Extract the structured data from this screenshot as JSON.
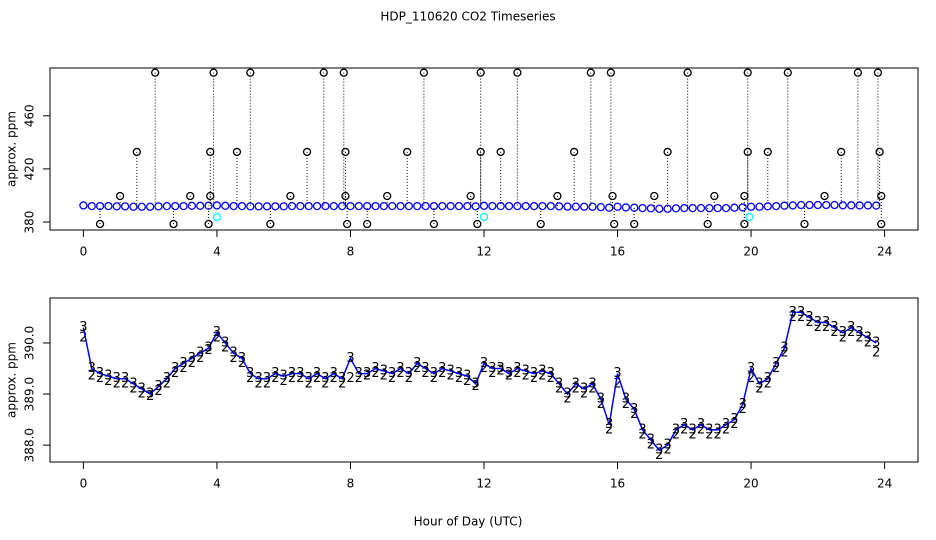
{
  "chart_data": [
    {
      "type": "scatter",
      "title": "HDP_110620  CO2 Timeseries",
      "ylabel": "approx. ppm",
      "xlim": [
        -1,
        25
      ],
      "xticks": [
        0,
        4,
        8,
        12,
        16,
        20,
        24
      ],
      "ylim": [
        374,
        496
      ],
      "yticks": [
        380,
        420,
        460
      ],
      "x": [
        0,
        0.25,
        0.5,
        0.75,
        1,
        1.25,
        1.5,
        1.75,
        2,
        2.25,
        2.5,
        2.75,
        3,
        3.25,
        3.5,
        3.75,
        4,
        4.25,
        4.5,
        4.75,
        5,
        5.25,
        5.5,
        5.75,
        6,
        6.25,
        6.5,
        6.75,
        7,
        7.25,
        7.5,
        7.75,
        8,
        8.25,
        8.5,
        8.75,
        9,
        9.25,
        9.5,
        9.75,
        10,
        10.25,
        10.5,
        10.75,
        11,
        11.25,
        11.5,
        11.75,
        12,
        12.25,
        12.5,
        12.75,
        13,
        13.25,
        13.5,
        13.75,
        14,
        14.25,
        14.5,
        14.75,
        15,
        15.25,
        15.5,
        15.75,
        16,
        16.25,
        16.5,
        16.75,
        17,
        17.25,
        17.5,
        17.75,
        18,
        18.25,
        18.5,
        18.75,
        19,
        19.25,
        19.5,
        19.75,
        20,
        20.25,
        20.5,
        20.75,
        21,
        21.25,
        21.5,
        21.75,
        22,
        22.25,
        22.5,
        22.75,
        23,
        23.25,
        23.5,
        23.75
      ],
      "series": [
        {
          "color": "#0000ff",
          "marker": "circle",
          "values": [
            392.5,
            392,
            392,
            392,
            391.8,
            391.8,
            391.5,
            391.5,
            391.5,
            391.8,
            392,
            392,
            392,
            392.2,
            392.2,
            392.3,
            392.5,
            392.2,
            392,
            392,
            391.8,
            391.8,
            391.8,
            391.8,
            391.8,
            392,
            392,
            392,
            392,
            392,
            392,
            392,
            392,
            392,
            392,
            392,
            392,
            392,
            392,
            392,
            392,
            392,
            392,
            392,
            392,
            392,
            392,
            391.8,
            392.2,
            392,
            392,
            392,
            392,
            392,
            392,
            392,
            392,
            391.8,
            391.6,
            391.6,
            391.5,
            391.5,
            391.2,
            390.8,
            391.5,
            391,
            390.8,
            390.5,
            390.3,
            390,
            390,
            390.3,
            390.5,
            390.5,
            390.5,
            390.5,
            390.5,
            390.5,
            390.8,
            391,
            391.5,
            391.5,
            391.8,
            392,
            392.3,
            392.5,
            392.8,
            392.8,
            392.8,
            392.8,
            392.8,
            392.6,
            392.6,
            392.5,
            392.5,
            392.4
          ]
        },
        {
          "color": "#000000",
          "marker": "circle",
          "drop": true,
          "x": [
            2.15,
            3.9,
            5.0,
            7.2,
            7.8,
            10.2,
            11.9,
            13.0,
            15.2,
            15.8,
            18.1,
            19.9,
            21.1,
            23.2,
            23.8,
            1.6,
            3.8,
            4.6,
            6.7,
            7.85,
            9.7,
            11.9,
            12.5,
            14.7,
            17.5,
            19.9,
            20.5,
            22.7,
            23.85,
            1.1,
            3.2,
            3.8,
            6.2,
            7.85,
            9.1,
            11.6,
            14.2,
            15.85,
            17.1,
            18.9,
            19.8,
            22.2,
            23.9,
            0.5,
            2.7,
            3.75,
            5.6,
            7.9,
            8.5,
            10.5,
            11.8,
            13.7,
            15.9,
            16.5,
            18.7,
            19.8,
            21.6,
            23.9
          ],
          "values": [
            492.5,
            492.5,
            492.5,
            492.5,
            492.5,
            492.5,
            492.5,
            492.5,
            492.5,
            492.5,
            492.5,
            492.5,
            492.5,
            492.5,
            492.5,
            432.8,
            432.8,
            432.8,
            432.8,
            432.8,
            432.8,
            432.8,
            432.8,
            432.8,
            432.8,
            432.8,
            432.8,
            432.8,
            432.8,
            399.6,
            399.6,
            399.6,
            399.6,
            399.6,
            399.6,
            399.6,
            399.6,
            399.6,
            399.6,
            399.6,
            399.6,
            399.6,
            399.6,
            378.5,
            378.5,
            378.5,
            378.5,
            378.5,
            378.5,
            378.5,
            378.5,
            378.5,
            378.5,
            378.5,
            378.5,
            378.5,
            378.5,
            378.5
          ]
        },
        {
          "color": "#00ffff",
          "marker": "circle",
          "x": [
            4.0,
            12.0,
            19.95
          ],
          "values": [
            383.8,
            383.8,
            383.8
          ]
        }
      ]
    },
    {
      "type": "scatter",
      "ylabel": "approx. ppm",
      "xlabel": "Hour of Day (UTC)",
      "xlim": [
        -1,
        25
      ],
      "xticks": [
        0,
        4,
        8,
        12,
        16,
        20,
        24
      ],
      "ylim": [
        387.67,
        390.88
      ],
      "yticks": [
        {
          "value": 388,
          "label": "388.0"
        },
        {
          "value": 389,
          "label": "389.0"
        },
        {
          "value": 390,
          "label": "390.0"
        }
      ],
      "x": [
        0,
        0.25,
        0.5,
        0.75,
        1,
        1.25,
        1.5,
        1.75,
        2,
        2.25,
        2.5,
        2.75,
        3,
        3.25,
        3.5,
        3.75,
        4,
        4.25,
        4.5,
        4.75,
        5,
        5.25,
        5.5,
        5.75,
        6,
        6.25,
        6.5,
        6.75,
        7,
        7.25,
        7.5,
        7.75,
        8,
        8.25,
        8.5,
        8.75,
        9,
        9.25,
        9.5,
        9.75,
        10,
        10.25,
        10.5,
        10.75,
        11,
        11.25,
        11.5,
        11.75,
        12,
        12.25,
        12.5,
        12.75,
        13,
        13.25,
        13.5,
        13.75,
        14,
        14.25,
        14.5,
        14.75,
        15,
        15.25,
        15.5,
        15.75,
        16,
        16.25,
        16.5,
        16.75,
        17,
        17.25,
        17.5,
        17.75,
        18,
        18.25,
        18.5,
        18.75,
        19,
        19.25,
        19.5,
        19.75,
        20,
        20.25,
        20.5,
        20.75,
        21,
        21.25,
        21.5,
        21.75,
        22,
        22.25,
        22.5,
        22.75,
        23,
        23.25,
        23.5,
        23.75
      ],
      "series": [
        {
          "color": "#22cc22",
          "marker": "glyph",
          "pch": "2",
          "values": [
            390.1,
            389.35,
            389.3,
            389.25,
            389.2,
            389.2,
            389.1,
            389.0,
            388.95,
            389.05,
            389.2,
            389.4,
            389.5,
            389.6,
            389.7,
            389.85,
            390.1,
            389.9,
            389.7,
            389.6,
            389.3,
            389.2,
            389.2,
            389.3,
            389.25,
            389.3,
            389.3,
            389.2,
            389.3,
            389.2,
            389.3,
            389.2,
            389.3,
            389.3,
            389.35,
            389.4,
            389.35,
            389.3,
            389.4,
            389.3,
            389.5,
            389.4,
            389.3,
            389.4,
            389.35,
            389.3,
            389.25,
            389.15,
            389.5,
            389.4,
            389.45,
            389.35,
            389.4,
            389.35,
            389.3,
            389.35,
            389.3,
            389.1,
            388.9,
            389.1,
            389.0,
            389.1,
            388.8,
            388.3,
            389.2,
            388.8,
            388.6,
            388.2,
            388.0,
            387.8,
            387.9,
            388.2,
            388.3,
            388.2,
            388.3,
            388.2,
            388.2,
            388.3,
            388.4,
            388.7,
            389.3,
            389.1,
            389.2,
            389.5,
            389.8,
            390.5,
            390.5,
            390.4,
            390.3,
            390.3,
            390.2,
            390.1,
            390.2,
            390.1,
            390.0,
            389.8
          ]
        },
        {
          "color": "#0000ff",
          "marker": "glyph",
          "pch": "3",
          "line": true,
          "values": [
            390.3,
            389.5,
            389.4,
            389.35,
            389.3,
            389.3,
            389.2,
            389.1,
            389.0,
            389.15,
            389.3,
            389.5,
            389.6,
            389.7,
            389.8,
            389.9,
            390.2,
            390.0,
            389.8,
            389.7,
            389.4,
            389.3,
            389.3,
            389.4,
            389.35,
            389.4,
            389.4,
            389.3,
            389.4,
            389.3,
            389.4,
            389.3,
            389.7,
            389.4,
            389.4,
            389.5,
            389.45,
            389.4,
            389.5,
            389.4,
            389.6,
            389.5,
            389.4,
            389.5,
            389.45,
            389.4,
            389.35,
            389.2,
            389.6,
            389.5,
            389.5,
            389.4,
            389.5,
            389.45,
            389.4,
            389.45,
            389.4,
            389.2,
            389.0,
            389.2,
            389.1,
            389.2,
            388.9,
            388.4,
            389.4,
            388.9,
            388.7,
            388.3,
            388.1,
            387.9,
            388.0,
            388.3,
            388.4,
            388.3,
            388.4,
            388.3,
            388.3,
            388.4,
            388.5,
            388.8,
            389.5,
            389.2,
            389.3,
            389.6,
            389.9,
            390.6,
            390.6,
            390.5,
            390.4,
            390.4,
            390.3,
            390.2,
            390.3,
            390.2,
            390.1,
            390.0
          ]
        }
      ]
    }
  ]
}
